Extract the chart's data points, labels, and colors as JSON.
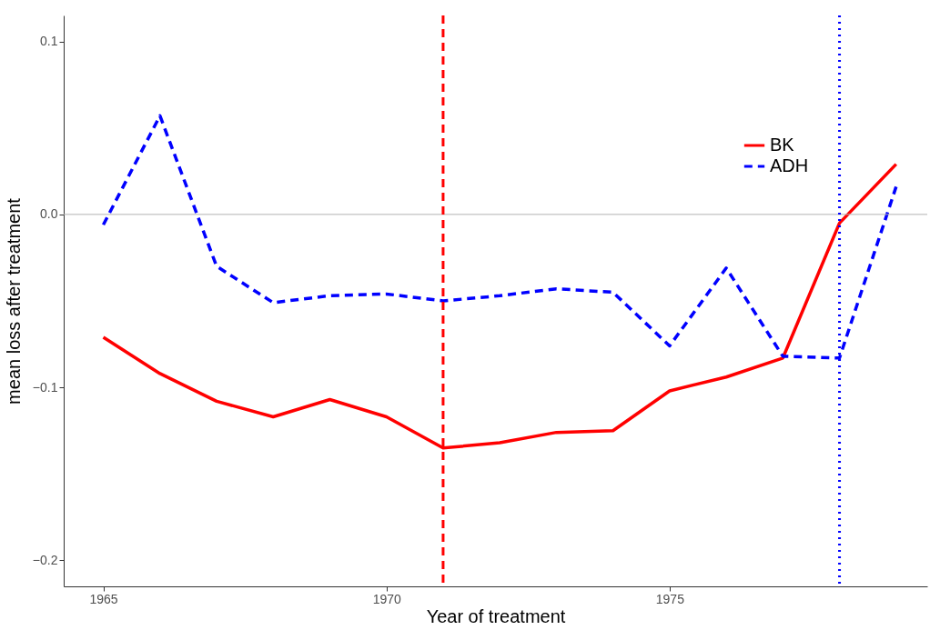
{
  "chart_data": {
    "type": "line",
    "xlabel": "Year of treatment",
    "ylabel": "mean loss after treatment",
    "x": [
      1965,
      1966,
      1967,
      1968,
      1969,
      1970,
      1971,
      1972,
      1973,
      1974,
      1975,
      1976,
      1977,
      1978,
      1979
    ],
    "series": [
      {
        "name": "BK",
        "color": "#ff0000",
        "line_style": "solid",
        "values": [
          -0.071,
          -0.092,
          -0.108,
          -0.117,
          -0.107,
          -0.117,
          -0.135,
          -0.132,
          -0.126,
          -0.125,
          -0.102,
          -0.094,
          -0.083,
          -0.005,
          0.029
        ]
      },
      {
        "name": "ADH",
        "color": "#0000ff",
        "line_style": "dashed",
        "values": [
          -0.006,
          0.057,
          -0.03,
          -0.051,
          -0.047,
          -0.046,
          -0.05,
          -0.047,
          -0.043,
          -0.045,
          -0.076,
          -0.031,
          -0.082,
          -0.083,
          0.016
        ]
      }
    ],
    "xlim": [
      1964.3,
      1979.55
    ],
    "xticks": [
      1965,
      1970,
      1975
    ],
    "ylim": [
      -0.215,
      0.115
    ],
    "yticks": [
      {
        "value": -0.2,
        "label": "−0.2"
      },
      {
        "value": -0.1,
        "label": "−0.1"
      },
      {
        "value": 0,
        "label": "0.0"
      },
      0.1
    ],
    "ref_lines": [
      {
        "axis": "y",
        "value": 0,
        "color": "#b3b3b3",
        "line_style": "solid"
      },
      {
        "axis": "x",
        "value": 1971,
        "color": "#ff0000",
        "line_style": "dashed"
      },
      {
        "axis": "x",
        "value": 1978,
        "color": "#0000ff",
        "line_style": "dotted"
      }
    ],
    "legend": "top right",
    "grid": false
  }
}
